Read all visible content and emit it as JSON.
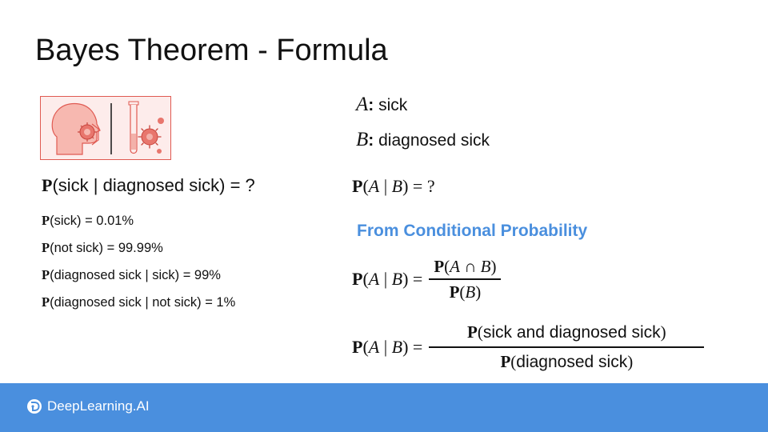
{
  "slide": {
    "title": "Bayes Theorem - Formula"
  },
  "left": {
    "question": {
      "p": "P",
      "body": "(sick | diagnosed sick) = ?"
    },
    "given": [
      {
        "p": "P",
        "body": "(sick) = 0.01%"
      },
      {
        "p": "P",
        "body": "(not sick) = 99.99%"
      },
      {
        "p": "P",
        "body": "(diagnosed sick | sick) = 99%"
      },
      {
        "p": "P",
        "body": "(diagnosed sick | not sick) = 1%"
      }
    ]
  },
  "right": {
    "definitions": [
      {
        "var": "A",
        "colon": ":",
        "text": " sick"
      },
      {
        "var": "B",
        "colon": ":",
        "text": " diagnosed sick"
      }
    ],
    "question_eq": {
      "p": "P",
      "open": "(",
      "a": "A",
      "mid": " | ",
      "b": "B",
      "close": ") = ?"
    },
    "section_heading": "From Conditional Probability",
    "eq1": {
      "lhs_p": "P",
      "lhs_open": "(",
      "lhs_a": "A",
      "lhs_mid": " | ",
      "lhs_b": "B",
      "lhs_close": ") =",
      "num_p": "P",
      "num_open": "(",
      "num_a": "A",
      "num_cap": " ∩ ",
      "num_b": "B",
      "num_close": ")",
      "den_p": "P",
      "den_open": "(",
      "den_b": "B",
      "den_close": ")"
    },
    "eq2": {
      "lhs_p": "P",
      "lhs_open": "(",
      "lhs_a": "A",
      "lhs_mid": " | ",
      "lhs_b": "B",
      "lhs_close": ") =",
      "num_p": "P",
      "num_open": "(",
      "num_text": "sick and diagnosed sick",
      "num_close": ")",
      "den_p": "P",
      "den_open": "(",
      "den_text": "diagnosed sick",
      "den_close": ")"
    }
  },
  "footer": {
    "brand": "DeepLearning.AI",
    "color": "#4a8fde"
  },
  "icons": {
    "illustration": "patient-and-test-tube-virus-icon",
    "logo": "deeplearning-logo-icon"
  }
}
